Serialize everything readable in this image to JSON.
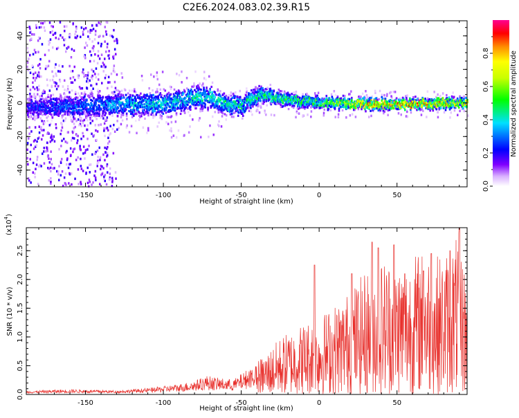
{
  "title": "C2E6.2024.083.02.39.R15",
  "chart_data": [
    {
      "type": "heatmap",
      "xlabel": "Height of straight line (km)",
      "ylabel": "Frequency (Hz)",
      "xlim": [
        -188,
        95
      ],
      "ylim": [
        -50,
        49
      ],
      "xticks": [
        -150,
        -100,
        -50,
        0,
        50
      ],
      "yticks": [
        -40,
        -20,
        0,
        20,
        40
      ],
      "xtick_labels": [
        "-150",
        "-100",
        "-50",
        "0",
        "50"
      ],
      "ytick_labels": [
        "-40",
        "-20",
        "0",
        "20",
        "40"
      ],
      "colorbar": {
        "label": "Normalized spectral amplitude",
        "range": [
          0,
          1
        ],
        "ticks": [
          0.0,
          0.2,
          0.4,
          0.6,
          0.8
        ],
        "tick_labels": [
          "0.0",
          "0.2",
          "0.4",
          "0.6",
          "0.8"
        ],
        "colormap": "rainbow (white-violet-blue-cyan-green-yellow-orange-red-magenta)"
      },
      "band_center": [
        {
          "x": -185,
          "y": -2
        },
        {
          "x": -150,
          "y": -1
        },
        {
          "x": -120,
          "y": 0
        },
        {
          "x": -100,
          "y": 0
        },
        {
          "x": -75,
          "y": 5
        },
        {
          "x": -60,
          "y": 0
        },
        {
          "x": -50,
          "y": -1
        },
        {
          "x": -38,
          "y": 6
        },
        {
          "x": -25,
          "y": 3
        },
        {
          "x": 0,
          "y": 1
        },
        {
          "x": 30,
          "y": 0
        },
        {
          "x": 60,
          "y": 0
        },
        {
          "x": 94,
          "y": 1
        }
      ],
      "band_halfwidth": [
        {
          "x": -185,
          "y": 6
        },
        {
          "x": -100,
          "y": 7
        },
        {
          "x": -60,
          "y": 6
        },
        {
          "x": -30,
          "y": 4
        },
        {
          "x": 0,
          "y": 3
        },
        {
          "x": 94,
          "y": 2.5
        }
      ],
      "peak_amplitude": [
        {
          "x": -185,
          "y": 0.25
        },
        {
          "x": -120,
          "y": 0.4
        },
        {
          "x": -60,
          "y": 0.45
        },
        {
          "x": -30,
          "y": 0.5
        },
        {
          "x": 0,
          "y": 0.55
        },
        {
          "x": 20,
          "y": 0.8
        },
        {
          "x": 50,
          "y": 0.9
        },
        {
          "x": 94,
          "y": 0.8
        }
      ],
      "scatter_noise_region": [
        -188,
        -130
      ]
    },
    {
      "type": "line",
      "xlabel": "Height of straight line (km)",
      "ylabel": "SNR (10 * v/v)",
      "scale_note_base": "(x10",
      "scale_note_exp": "4",
      "scale_note_end": ")",
      "xlim": [
        -188,
        95
      ],
      "ylim": [
        0,
        2.9
      ],
      "xticks": [
        -150,
        -100,
        -50,
        0,
        50
      ],
      "yticks": [
        0.0,
        0.5,
        1.0,
        1.5,
        2.0,
        2.5
      ],
      "xtick_labels": [
        "-150",
        "-100",
        "-50",
        "0",
        "50"
      ],
      "ytick_labels": [
        "0.0",
        "0.5",
        "1.0",
        "1.5",
        "2.0",
        "2.5"
      ],
      "line_color": "#e8302c",
      "series": [
        {
          "envelope": [
            {
              "x": -188,
              "y": 0.05
            },
            {
              "x": -160,
              "y": 0.08
            },
            {
              "x": -130,
              "y": 0.06
            },
            {
              "x": -110,
              "y": 0.1
            },
            {
              "x": -90,
              "y": 0.17
            },
            {
              "x": -80,
              "y": 0.23
            },
            {
              "x": -72,
              "y": 0.32
            },
            {
              "x": -65,
              "y": 0.28
            },
            {
              "x": -55,
              "y": 0.25
            },
            {
              "x": -45,
              "y": 0.45
            },
            {
              "x": -35,
              "y": 0.65
            },
            {
              "x": -25,
              "y": 0.95
            },
            {
              "x": -10,
              "y": 1.2
            },
            {
              "x": 0,
              "y": 1.3
            },
            {
              "x": 15,
              "y": 1.6
            },
            {
              "x": 25,
              "y": 1.9
            },
            {
              "x": 35,
              "y": 2.2
            },
            {
              "x": 45,
              "y": 2.3
            },
            {
              "x": 55,
              "y": 2.2
            },
            {
              "x": 65,
              "y": 2.4
            },
            {
              "x": 80,
              "y": 2.3
            },
            {
              "x": 90,
              "y": 2.7
            },
            {
              "x": 95,
              "y": 1.8
            }
          ],
          "peaks": [
            {
              "x": -3,
              "y": 2.25
            },
            {
              "x": 21,
              "y": 2.1
            },
            {
              "x": 34,
              "y": 2.65
            },
            {
              "x": 38,
              "y": 2.55
            },
            {
              "x": 48,
              "y": 2.6
            },
            {
              "x": 55,
              "y": 2.1
            },
            {
              "x": 67,
              "y": 2.15
            },
            {
              "x": 72,
              "y": 2.45
            },
            {
              "x": 84,
              "y": 2.5
            },
            {
              "x": 90,
              "y": 2.9
            }
          ]
        }
      ]
    }
  ]
}
